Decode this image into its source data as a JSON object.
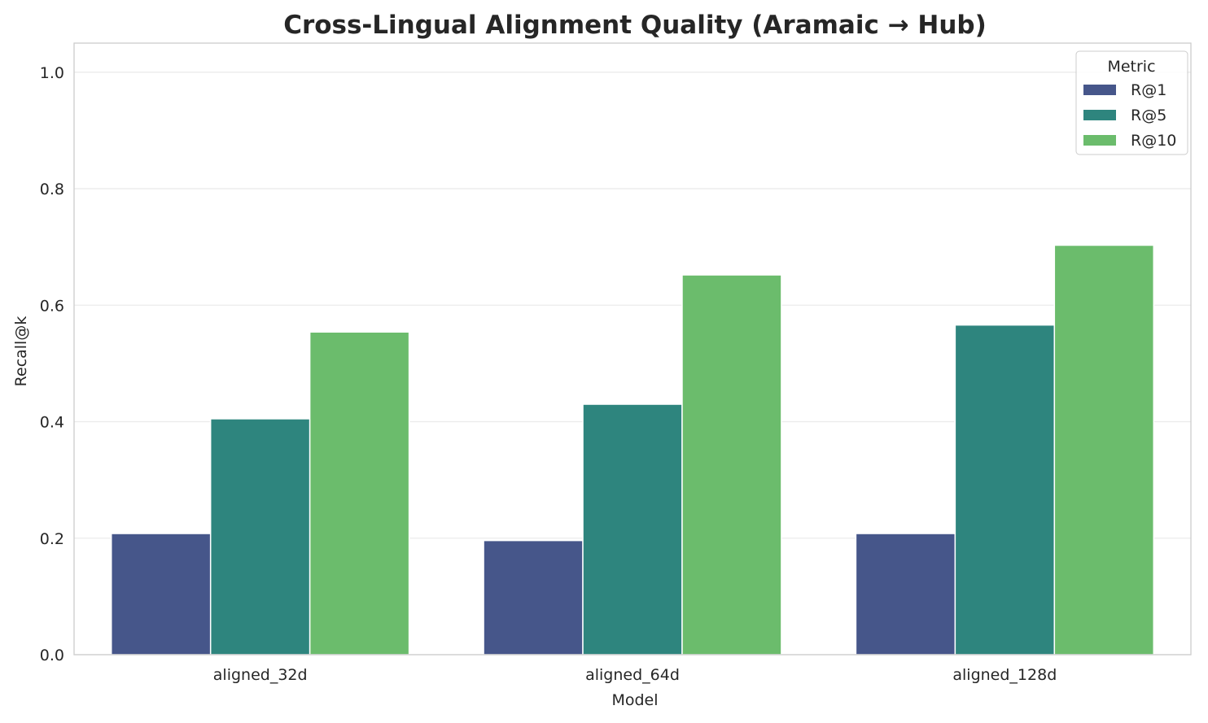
{
  "chart_data": {
    "type": "bar",
    "title": "Cross-Lingual Alignment Quality (Aramaic → Hub)",
    "xlabel": "Model",
    "ylabel": "Recall@k",
    "categories": [
      "aligned_32d",
      "aligned_64d",
      "aligned_128d"
    ],
    "series": [
      {
        "name": "R@1",
        "color": "#46568a",
        "values": [
          0.208,
          0.196,
          0.208
        ]
      },
      {
        "name": "R@5",
        "color": "#2e857e",
        "values": [
          0.405,
          0.43,
          0.566
        ]
      },
      {
        "name": "R@10",
        "color": "#6bbc6c",
        "values": [
          0.554,
          0.652,
          0.703
        ]
      }
    ],
    "ylim": [
      0,
      1.05
    ],
    "yticks": [
      "0.0",
      "0.2",
      "0.4",
      "0.6",
      "0.8",
      "1.0"
    ],
    "grid": true,
    "legend": {
      "title": "Metric",
      "placement": "top-right"
    }
  }
}
